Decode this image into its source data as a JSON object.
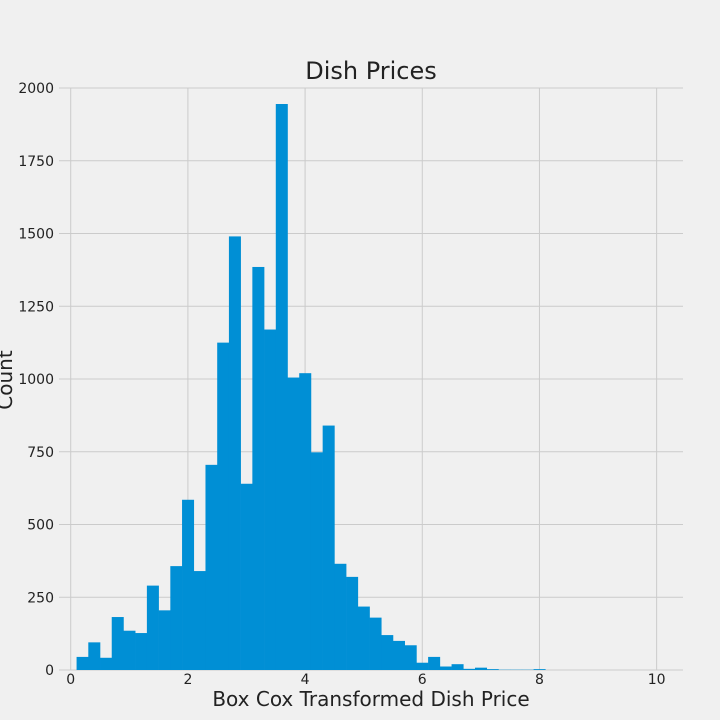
{
  "chart_data": {
    "type": "bar",
    "title": "Dish Prices",
    "xlabel": "Box Cox Transformed Dish Price",
    "ylabel": "Count",
    "xlim": [
      -0.2,
      10.45
    ],
    "ylim": [
      0,
      2000
    ],
    "xticks": [
      0,
      2,
      4,
      6,
      8,
      10
    ],
    "yticks": [
      0,
      250,
      500,
      750,
      1000,
      1250,
      1500,
      1750,
      2000
    ],
    "grid": true,
    "bar_color": "#008fd5",
    "bin_width": 0.2,
    "bins": [
      {
        "x0": 0.1,
        "count": 45
      },
      {
        "x0": 0.3,
        "count": 95
      },
      {
        "x0": 0.5,
        "count": 42
      },
      {
        "x0": 0.7,
        "count": 182
      },
      {
        "x0": 0.9,
        "count": 135
      },
      {
        "x0": 1.1,
        "count": 127
      },
      {
        "x0": 1.3,
        "count": 290
      },
      {
        "x0": 1.5,
        "count": 205
      },
      {
        "x0": 1.7,
        "count": 357
      },
      {
        "x0": 1.9,
        "count": 585
      },
      {
        "x0": 2.1,
        "count": 340
      },
      {
        "x0": 2.3,
        "count": 705
      },
      {
        "x0": 2.5,
        "count": 1125
      },
      {
        "x0": 2.7,
        "count": 1490
      },
      {
        "x0": 2.9,
        "count": 640
      },
      {
        "x0": 3.1,
        "count": 1385
      },
      {
        "x0": 3.3,
        "count": 1170
      },
      {
        "x0": 3.5,
        "count": 1945
      },
      {
        "x0": 3.7,
        "count": 1005
      },
      {
        "x0": 3.9,
        "count": 1020
      },
      {
        "x0": 4.1,
        "count": 748
      },
      {
        "x0": 4.3,
        "count": 840
      },
      {
        "x0": 4.5,
        "count": 365
      },
      {
        "x0": 4.7,
        "count": 320
      },
      {
        "x0": 4.9,
        "count": 218
      },
      {
        "x0": 5.1,
        "count": 180
      },
      {
        "x0": 5.3,
        "count": 120
      },
      {
        "x0": 5.5,
        "count": 100
      },
      {
        "x0": 5.7,
        "count": 85
      },
      {
        "x0": 5.9,
        "count": 25
      },
      {
        "x0": 6.1,
        "count": 45
      },
      {
        "x0": 6.3,
        "count": 12
      },
      {
        "x0": 6.5,
        "count": 20
      },
      {
        "x0": 6.7,
        "count": 4
      },
      {
        "x0": 6.9,
        "count": 8
      },
      {
        "x0": 7.1,
        "count": 3
      },
      {
        "x0": 7.3,
        "count": 1
      },
      {
        "x0": 7.5,
        "count": 1
      },
      {
        "x0": 7.7,
        "count": 1
      },
      {
        "x0": 7.9,
        "count": 3
      }
    ]
  }
}
